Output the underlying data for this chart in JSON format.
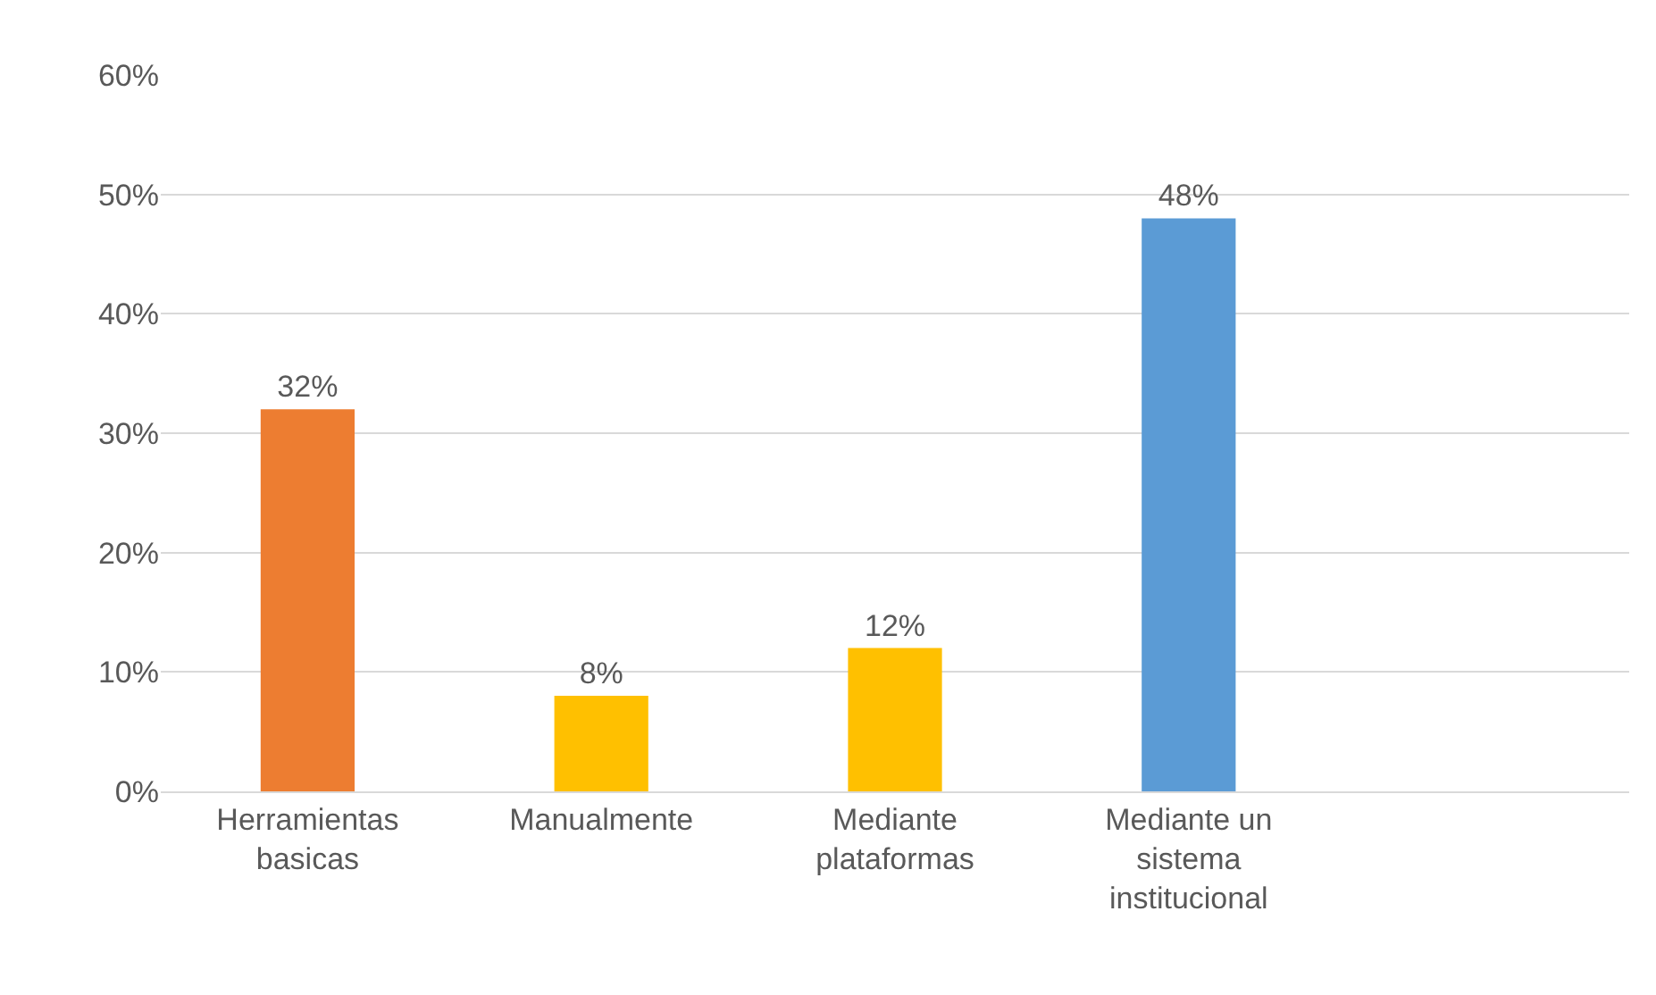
{
  "chart_data": {
    "type": "bar",
    "categories": [
      "Herramientas basicas",
      "Manualmente",
      "Mediante plataformas",
      "Mediante un sistema institucional",
      null
    ],
    "values": [
      32,
      8,
      12,
      48,
      null
    ],
    "colors": [
      "#ed7d31",
      "#ffc000",
      "#ffc000",
      "#5b9bd5",
      "#5b9bd5"
    ],
    "value_labels": [
      "32%",
      "8%",
      "12%",
      "48%",
      null
    ],
    "ylim": [
      0,
      60
    ],
    "yticks": [
      {
        "value": 0,
        "label": "0%"
      },
      {
        "value": 10,
        "label": "10%"
      },
      {
        "value": 20,
        "label": "20%"
      },
      {
        "value": 30,
        "label": "30%"
      },
      {
        "value": 40,
        "label": "40%"
      },
      {
        "value": 50,
        "label": "50%"
      },
      {
        "value": 60,
        "label": "60%"
      }
    ],
    "grid": "y",
    "legend": false
  }
}
